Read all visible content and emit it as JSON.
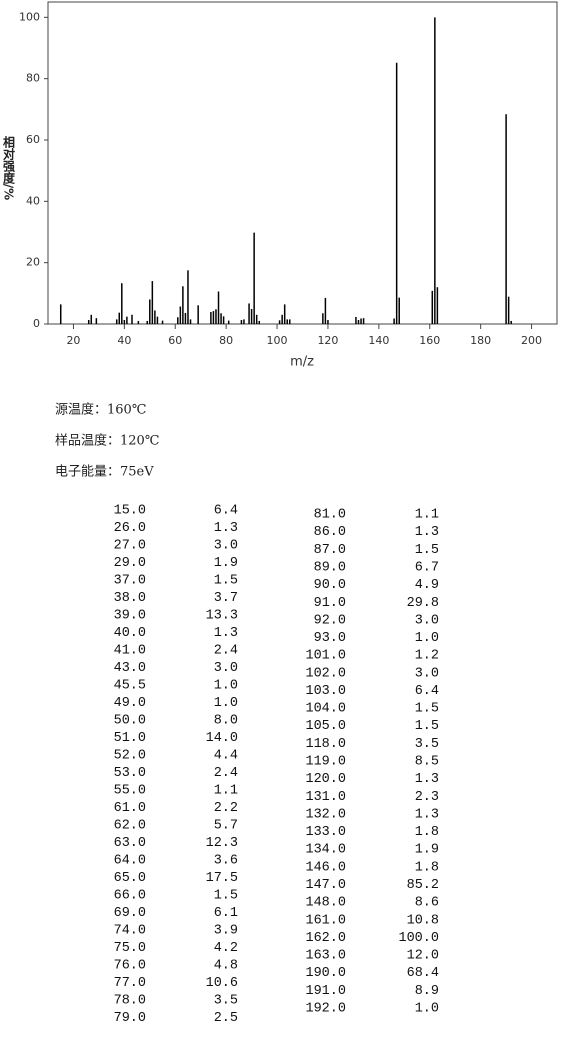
{
  "chart_data": {
    "type": "stick",
    "x_label": "m/z",
    "y_label": "相对强度/%",
    "color": "#000000",
    "x": [
      15.0,
      26.0,
      27.0,
      29.0,
      37.0,
      38.0,
      39.0,
      40.0,
      41.0,
      43.0,
      45.5,
      49.0,
      50.0,
      51.0,
      52.0,
      53.0,
      55.0,
      61.0,
      62.0,
      63.0,
      64.0,
      65.0,
      66.0,
      69.0,
      74.0,
      75.0,
      76.0,
      77.0,
      78.0,
      79.0,
      81.0,
      86.0,
      87.0,
      89.0,
      90.0,
      91.0,
      92.0,
      93.0,
      101.0,
      102.0,
      103.0,
      104.0,
      105.0,
      118.0,
      119.0,
      120.0,
      131.0,
      132.0,
      133.0,
      134.0,
      146.0,
      147.0,
      148.0,
      161.0,
      162.0,
      163.0,
      190.0,
      191.0,
      192.0
    ],
    "values": [
      6.4,
      1.3,
      3.0,
      1.9,
      1.5,
      3.7,
      13.3,
      1.3,
      2.4,
      3.0,
      1.0,
      1.0,
      8.0,
      14.0,
      4.4,
      2.4,
      1.1,
      2.2,
      5.7,
      12.3,
      3.6,
      17.5,
      1.5,
      6.1,
      3.9,
      4.2,
      4.8,
      10.6,
      3.5,
      2.5,
      1.1,
      1.3,
      1.5,
      6.7,
      4.9,
      29.8,
      3.0,
      1.0,
      1.2,
      3.0,
      6.4,
      1.5,
      1.5,
      3.5,
      8.5,
      1.3,
      2.3,
      1.3,
      1.8,
      1.9,
      1.8,
      85.2,
      8.6,
      10.8,
      100.0,
      12.0,
      68.4,
      8.9,
      1.0
    ],
    "xlim": [
      10,
      210
    ],
    "xticks": [
      20,
      40,
      60,
      80,
      100,
      120,
      140,
      160,
      180,
      200
    ],
    "ylim": [
      0,
      105
    ],
    "yticks": [
      0,
      20,
      40,
      60,
      80,
      100
    ]
  },
  "info": [
    "源温度：160℃",
    "样品温度：120℃",
    "电子能量：75eV"
  ],
  "table": {
    "left": [
      [
        "15.0",
        "6.4"
      ],
      [
        "26.0",
        "1.3"
      ],
      [
        "27.0",
        "3.0"
      ],
      [
        "29.0",
        "1.9"
      ],
      [
        "37.0",
        "1.5"
      ],
      [
        "38.0",
        "3.7"
      ],
      [
        "39.0",
        "13.3"
      ],
      [
        "40.0",
        "1.3"
      ],
      [
        "41.0",
        "2.4"
      ],
      [
        "43.0",
        "3.0"
      ],
      [
        "45.5",
        "1.0"
      ],
      [
        "49.0",
        "1.0"
      ],
      [
        "50.0",
        "8.0"
      ],
      [
        "51.0",
        "14.0"
      ],
      [
        "52.0",
        "4.4"
      ],
      [
        "53.0",
        "2.4"
      ],
      [
        "55.0",
        "1.1"
      ],
      [
        "61.0",
        "2.2"
      ],
      [
        "62.0",
        "5.7"
      ],
      [
        "63.0",
        "12.3"
      ],
      [
        "64.0",
        "3.6"
      ],
      [
        "65.0",
        "17.5"
      ],
      [
        "66.0",
        "1.5"
      ],
      [
        "69.0",
        "6.1"
      ],
      [
        "74.0",
        "3.9"
      ],
      [
        "75.0",
        "4.2"
      ],
      [
        "76.0",
        "4.8"
      ],
      [
        "77.0",
        "10.6"
      ],
      [
        "78.0",
        "3.5"
      ],
      [
        "79.0",
        "2.5"
      ]
    ],
    "right": [
      [
        "81.0",
        "1.1"
      ],
      [
        "86.0",
        "1.3"
      ],
      [
        "87.0",
        "1.5"
      ],
      [
        "89.0",
        "6.7"
      ],
      [
        "90.0",
        "4.9"
      ],
      [
        "91.0",
        "29.8"
      ],
      [
        "92.0",
        "3.0"
      ],
      [
        "93.0",
        "1.0"
      ],
      [
        "101.0",
        "1.2"
      ],
      [
        "102.0",
        "3.0"
      ],
      [
        "103.0",
        "6.4"
      ],
      [
        "104.0",
        "1.5"
      ],
      [
        "105.0",
        "1.5"
      ],
      [
        "118.0",
        "3.5"
      ],
      [
        "119.0",
        "8.5"
      ],
      [
        "120.0",
        "1.3"
      ],
      [
        "131.0",
        "2.3"
      ],
      [
        "132.0",
        "1.3"
      ],
      [
        "133.0",
        "1.8"
      ],
      [
        "134.0",
        "1.9"
      ],
      [
        "146.0",
        "1.8"
      ],
      [
        "147.0",
        "85.2"
      ],
      [
        "148.0",
        "8.6"
      ],
      [
        "161.0",
        "10.8"
      ],
      [
        "162.0",
        "100.0"
      ],
      [
        "163.0",
        "12.0"
      ],
      [
        "190.0",
        "68.4"
      ],
      [
        "191.0",
        "8.9"
      ],
      [
        "192.0",
        "1.0"
      ]
    ]
  }
}
